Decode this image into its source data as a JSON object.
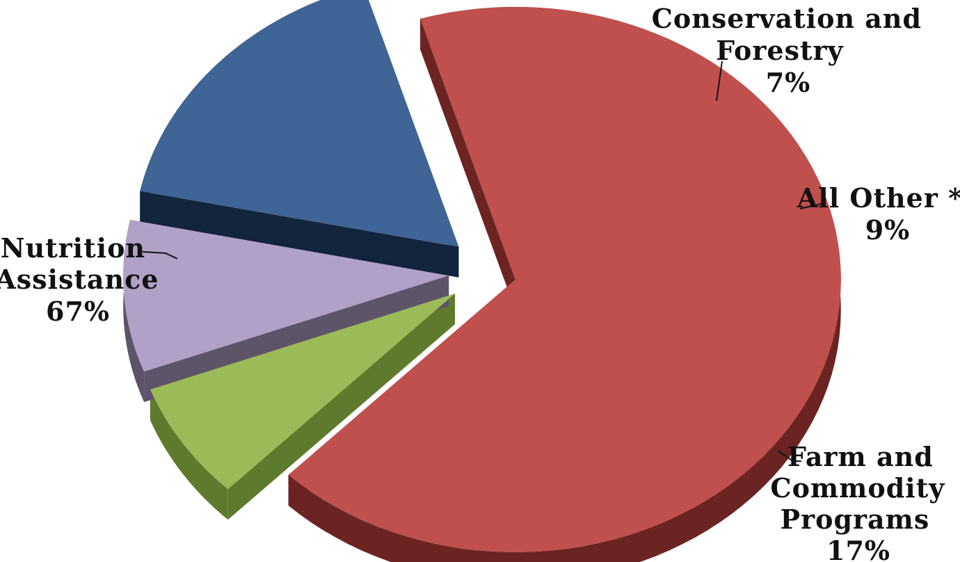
{
  "chart_data": {
    "type": "pie",
    "title": "",
    "slices": [
      {
        "name": "Nutrition Assistance",
        "value": 67,
        "value_label": "67%",
        "color": "#c0504d",
        "dark": "#6b2422",
        "label_lines": [
          "Nutrition",
          "Assistance",
          "67%"
        ]
      },
      {
        "name": "Conservation and Forestry",
        "value": 7,
        "value_label": "7%",
        "color": "#9bbb59",
        "dark": "#5e7a2c",
        "label_lines": [
          "Conservation and",
          "Forestry",
          "7%"
        ]
      },
      {
        "name": "All Other *",
        "value": 9,
        "value_label": "9%",
        "color": "#b2a1c7",
        "dark": "#5e5469",
        "label_lines": [
          "All Other *",
          "9%"
        ]
      },
      {
        "name": "Farm and Commodity Programs",
        "value": 17,
        "value_label": "17%",
        "color": "#3f6496",
        "dark": "#13243d",
        "label_lines": [
          "Farm and",
          "Commodity",
          "Programs",
          "17%"
        ]
      }
    ],
    "three_d": true,
    "exploded": true,
    "legend": "none"
  }
}
